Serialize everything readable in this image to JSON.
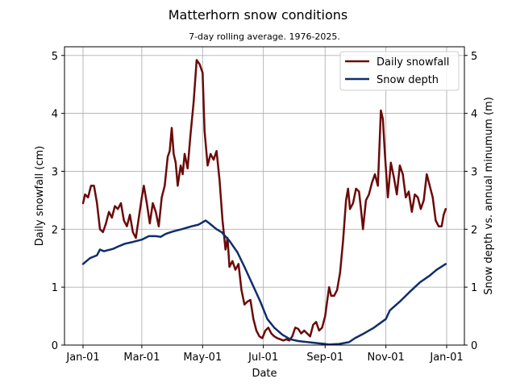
{
  "chart_data": {
    "type": "line",
    "title": "Matterhorn snow conditions",
    "subtitle": "7-day rolling average. 1976-2025.",
    "xlabel": "Date",
    "ylabel_left": "Daily snowfall (cm)",
    "ylabel_right": "Snow depth vs. annual minumum (m)",
    "x_ticks": [
      "Jan-01",
      "Mar-01",
      "May-01",
      "Jul-01",
      "Sep-01",
      "Nov-01",
      "Jan-01"
    ],
    "y_ticks_left": [
      "0",
      "1",
      "2",
      "3",
      "4",
      "5"
    ],
    "y_ticks_right": [
      "0",
      "1",
      "2",
      "3",
      "4",
      "5"
    ],
    "ylim_left": [
      0,
      5.15
    ],
    "ylim_right": [
      0,
      5.15
    ],
    "grid": true,
    "legend_position": "top-right",
    "series": [
      {
        "name": "Daily snowfall",
        "axis": "left",
        "color": "#6b0a0a",
        "points": [
          [
            "Jan-01",
            2.45
          ],
          [
            "Jan-03",
            2.6
          ],
          [
            "Jan-06",
            2.55
          ],
          [
            "Jan-09",
            2.75
          ],
          [
            "Jan-12",
            2.75
          ],
          [
            "Jan-15",
            2.45
          ],
          [
            "Jan-18",
            2.0
          ],
          [
            "Jan-21",
            1.95
          ],
          [
            "Jan-24",
            2.1
          ],
          [
            "Jan-27",
            2.3
          ],
          [
            "Jan-30",
            2.2
          ],
          [
            "Feb-02",
            2.4
          ],
          [
            "Feb-05",
            2.35
          ],
          [
            "Feb-08",
            2.45
          ],
          [
            "Feb-11",
            2.15
          ],
          [
            "Feb-14",
            2.05
          ],
          [
            "Feb-17",
            2.25
          ],
          [
            "Feb-20",
            1.95
          ],
          [
            "Feb-23",
            1.85
          ],
          [
            "Feb-26",
            2.2
          ],
          [
            "Mar-01",
            2.55
          ],
          [
            "Mar-03",
            2.75
          ],
          [
            "Mar-06",
            2.45
          ],
          [
            "Mar-09",
            2.1
          ],
          [
            "Mar-12",
            2.45
          ],
          [
            "Mar-15",
            2.3
          ],
          [
            "Mar-18",
            2.05
          ],
          [
            "Mar-21",
            2.55
          ],
          [
            "Mar-24",
            2.75
          ],
          [
            "Mar-27",
            3.25
          ],
          [
            "Mar-29",
            3.35
          ],
          [
            "Mar-31",
            3.75
          ],
          [
            "Apr-02",
            3.3
          ],
          [
            "Apr-04",
            3.15
          ],
          [
            "Apr-06",
            2.75
          ],
          [
            "Apr-09",
            3.1
          ],
          [
            "Apr-11",
            2.95
          ],
          [
            "Apr-13",
            3.3
          ],
          [
            "Apr-16",
            3.05
          ],
          [
            "Apr-19",
            3.65
          ],
          [
            "Apr-22",
            4.2
          ],
          [
            "Apr-25",
            4.92
          ],
          [
            "Apr-28",
            4.85
          ],
          [
            "May-01",
            4.7
          ],
          [
            "May-03",
            3.7
          ],
          [
            "May-06",
            3.1
          ],
          [
            "May-09",
            3.3
          ],
          [
            "May-12",
            3.2
          ],
          [
            "May-15",
            3.35
          ],
          [
            "May-18",
            2.85
          ],
          [
            "May-21",
            2.15
          ],
          [
            "May-24",
            1.65
          ],
          [
            "May-26",
            1.85
          ],
          [
            "May-28",
            1.35
          ],
          [
            "May-31",
            1.45
          ],
          [
            "Jun-03",
            1.3
          ],
          [
            "Jun-06",
            1.4
          ],
          [
            "Jun-09",
            0.95
          ],
          [
            "Jun-12",
            0.7
          ],
          [
            "Jun-15",
            0.75
          ],
          [
            "Jun-18",
            0.78
          ],
          [
            "Jun-21",
            0.45
          ],
          [
            "Jun-24",
            0.25
          ],
          [
            "Jun-27",
            0.15
          ],
          [
            "Jun-30",
            0.12
          ],
          [
            "Jul-03",
            0.25
          ],
          [
            "Jul-06",
            0.3
          ],
          [
            "Jul-09",
            0.2
          ],
          [
            "Jul-12",
            0.15
          ],
          [
            "Jul-15",
            0.12
          ],
          [
            "Jul-18",
            0.1
          ],
          [
            "Jul-21",
            0.08
          ],
          [
            "Jul-24",
            0.1
          ],
          [
            "Jul-27",
            0.08
          ],
          [
            "Jul-30",
            0.15
          ],
          [
            "Aug-02",
            0.3
          ],
          [
            "Aug-05",
            0.28
          ],
          [
            "Aug-08",
            0.2
          ],
          [
            "Aug-11",
            0.25
          ],
          [
            "Aug-14",
            0.2
          ],
          [
            "Aug-17",
            0.15
          ],
          [
            "Aug-20",
            0.35
          ],
          [
            "Aug-23",
            0.4
          ],
          [
            "Aug-26",
            0.25
          ],
          [
            "Aug-29",
            0.3
          ],
          [
            "Sep-01",
            0.5
          ],
          [
            "Sep-03",
            0.75
          ],
          [
            "Sep-05",
            1.0
          ],
          [
            "Sep-07",
            0.85
          ],
          [
            "Sep-10",
            0.85
          ],
          [
            "Sep-13",
            0.95
          ],
          [
            "Sep-16",
            1.25
          ],
          [
            "Sep-19",
            1.8
          ],
          [
            "Sep-22",
            2.5
          ],
          [
            "Sep-24",
            2.7
          ],
          [
            "Sep-26",
            2.35
          ],
          [
            "Sep-29",
            2.45
          ],
          [
            "Oct-02",
            2.7
          ],
          [
            "Oct-05",
            2.65
          ],
          [
            "Oct-07",
            2.35
          ],
          [
            "Oct-09",
            2.0
          ],
          [
            "Oct-12",
            2.5
          ],
          [
            "Oct-15",
            2.6
          ],
          [
            "Oct-18",
            2.8
          ],
          [
            "Oct-21",
            2.95
          ],
          [
            "Oct-24",
            2.75
          ],
          [
            "Oct-27",
            4.05
          ],
          [
            "Oct-29",
            3.9
          ],
          [
            "Oct-31",
            3.3
          ],
          [
            "Nov-03",
            2.55
          ],
          [
            "Nov-06",
            3.15
          ],
          [
            "Nov-09",
            2.9
          ],
          [
            "Nov-12",
            2.6
          ],
          [
            "Nov-15",
            3.1
          ],
          [
            "Nov-18",
            2.95
          ],
          [
            "Nov-21",
            2.55
          ],
          [
            "Nov-24",
            2.65
          ],
          [
            "Nov-27",
            2.3
          ],
          [
            "Nov-30",
            2.6
          ],
          [
            "Dec-03",
            2.55
          ],
          [
            "Dec-06",
            2.35
          ],
          [
            "Dec-09",
            2.5
          ],
          [
            "Dec-12",
            2.95
          ],
          [
            "Dec-15",
            2.75
          ],
          [
            "Dec-18",
            2.55
          ],
          [
            "Dec-21",
            2.15
          ],
          [
            "Dec-24",
            2.05
          ],
          [
            "Dec-27",
            2.05
          ],
          [
            "Dec-29",
            2.25
          ],
          [
            "Dec-31",
            2.35
          ]
        ]
      },
      {
        "name": "Snow depth",
        "axis": "right",
        "color": "#0f2d6e",
        "points": [
          [
            "Jan-01",
            1.4
          ],
          [
            "Jan-08",
            1.5
          ],
          [
            "Jan-15",
            1.55
          ],
          [
            "Jan-18",
            1.65
          ],
          [
            "Jan-22",
            1.62
          ],
          [
            "Jan-31",
            1.66
          ],
          [
            "Feb-05",
            1.7
          ],
          [
            "Feb-12",
            1.75
          ],
          [
            "Feb-20",
            1.78
          ],
          [
            "Mar-01",
            1.82
          ],
          [
            "Mar-08",
            1.88
          ],
          [
            "Mar-15",
            1.88
          ],
          [
            "Mar-20",
            1.87
          ],
          [
            "Mar-25",
            1.92
          ],
          [
            "Apr-01",
            1.96
          ],
          [
            "Apr-10",
            2.0
          ],
          [
            "Apr-20",
            2.05
          ],
          [
            "Apr-27",
            2.08
          ],
          [
            "May-01",
            2.12
          ],
          [
            "May-04",
            2.15
          ],
          [
            "May-08",
            2.1
          ],
          [
            "May-15",
            2.0
          ],
          [
            "May-20",
            1.95
          ],
          [
            "May-28",
            1.8
          ],
          [
            "Jun-05",
            1.6
          ],
          [
            "Jun-12",
            1.35
          ],
          [
            "Jun-20",
            1.05
          ],
          [
            "Jun-28",
            0.75
          ],
          [
            "Jul-05",
            0.45
          ],
          [
            "Jul-12",
            0.3
          ],
          [
            "Jul-20",
            0.18
          ],
          [
            "Jul-28",
            0.1
          ],
          [
            "Aug-05",
            0.07
          ],
          [
            "Aug-15",
            0.05
          ],
          [
            "Aug-25",
            0.03
          ],
          [
            "Sep-01",
            0.02
          ],
          [
            "Sep-05",
            0.01
          ],
          [
            "Sep-15",
            0.02
          ],
          [
            "Sep-25",
            0.05
          ],
          [
            "Oct-01",
            0.12
          ],
          [
            "Oct-10",
            0.2
          ],
          [
            "Oct-20",
            0.3
          ],
          [
            "Nov-01",
            0.45
          ],
          [
            "Nov-05",
            0.6
          ],
          [
            "Nov-15",
            0.75
          ],
          [
            "Nov-25",
            0.92
          ],
          [
            "Dec-05",
            1.08
          ],
          [
            "Dec-15",
            1.2
          ],
          [
            "Dec-22",
            1.3
          ],
          [
            "Dec-31",
            1.4
          ]
        ]
      }
    ]
  }
}
